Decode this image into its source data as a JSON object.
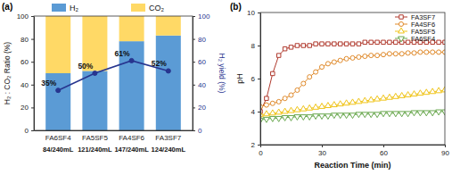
{
  "chart_data": [
    {
      "type": "bar",
      "title": "(a)",
      "stacked": true,
      "legend": "top",
      "categories": [
        "FA6SF4",
        "FA5SF5",
        "FA4SF6",
        "FA3SF7"
      ],
      "gas_volumes": [
        "84/240mL",
        "121/240mL",
        "147/240mL",
        "124/240mL"
      ],
      "ylabel": "H₂ : CO₂ Ratio (%)",
      "y2label": "H₂ yield (%)",
      "ylim": [
        0,
        100
      ],
      "yticks": [
        0,
        20,
        40,
        60,
        80,
        100
      ],
      "y2lim": [
        0,
        100
      ],
      "y2ticks": [
        0,
        20,
        40,
        60,
        80,
        100
      ],
      "series": [
        {
          "name": "H₂",
          "color": "#5b9bd5",
          "values": [
            50,
            52,
            78,
            83
          ]
        },
        {
          "name": "CO₂",
          "color": "#ffd966",
          "values": [
            50,
            48,
            22,
            17
          ]
        },
        {
          "type": "line",
          "axis": "y2",
          "color": "#27358f",
          "marker": "circle",
          "data_labels": true,
          "values": [
            35,
            50,
            61,
            52
          ],
          "value_labels": [
            "35%",
            "50%",
            "61%",
            "52%"
          ]
        }
      ]
    },
    {
      "type": "line",
      "title": "(b)",
      "legend": "top-right",
      "xlabel": "Reaction Time (min)",
      "ylabel": "pH",
      "x": [
        0,
        3,
        6,
        9,
        12,
        15,
        18,
        21,
        24,
        27,
        30,
        33,
        36,
        39,
        42,
        45,
        48,
        51,
        54,
        57,
        60,
        63,
        66,
        69,
        72,
        75,
        78,
        81,
        84,
        87,
        90
      ],
      "xlim": [
        0,
        90
      ],
      "xticks": [
        0,
        30,
        60,
        90
      ],
      "ylim": [
        2,
        10
      ],
      "yticks": [
        2,
        4,
        6,
        8,
        10
      ],
      "series": [
        {
          "name": "FA3SF7",
          "color": "#b03a2e",
          "marker": "square",
          "values": [
            4.0,
            4.8,
            6.3,
            7.4,
            7.8,
            7.9,
            8.0,
            8.0,
            8.0,
            8.1,
            8.1,
            8.1,
            8.1,
            8.1,
            8.1,
            8.1,
            8.1,
            8.2,
            8.2,
            8.2,
            8.2,
            8.2,
            8.2,
            8.2,
            8.2,
            8.2,
            8.2,
            8.2,
            8.2,
            8.2,
            8.2
          ]
        },
        {
          "name": "FA4SF6",
          "color": "#e08a2b",
          "marker": "circle",
          "values": [
            4.3,
            4.4,
            4.5,
            4.6,
            4.8,
            5.0,
            5.3,
            5.7,
            6.1,
            6.4,
            6.7,
            6.9,
            7.0,
            7.1,
            7.2,
            7.25,
            7.3,
            7.35,
            7.4,
            7.4,
            7.45,
            7.5,
            7.5,
            7.5,
            7.55,
            7.55,
            7.6,
            7.6,
            7.6,
            7.6,
            7.6
          ]
        },
        {
          "name": "FA5SF5",
          "color": "#f0c419",
          "marker": "triangle-up",
          "values": [
            3.8,
            3.85,
            3.9,
            3.95,
            4.0,
            4.05,
            4.1,
            4.15,
            4.2,
            4.25,
            4.3,
            4.35,
            4.4,
            4.45,
            4.5,
            4.55,
            4.6,
            4.65,
            4.7,
            4.75,
            4.8,
            4.85,
            4.9,
            4.95,
            5.0,
            5.05,
            5.1,
            5.15,
            5.2,
            5.25,
            5.3
          ]
        },
        {
          "name": "FA6SF4",
          "color": "#6aa84f",
          "marker": "triangle-down",
          "values": [
            3.5,
            3.55,
            3.6,
            3.6,
            3.65,
            3.65,
            3.7,
            3.7,
            3.7,
            3.75,
            3.75,
            3.75,
            3.8,
            3.8,
            3.8,
            3.8,
            3.85,
            3.85,
            3.85,
            3.85,
            3.9,
            3.9,
            3.9,
            3.9,
            3.9,
            3.95,
            3.95,
            3.95,
            3.95,
            4.0,
            4.0
          ]
        }
      ]
    }
  ]
}
